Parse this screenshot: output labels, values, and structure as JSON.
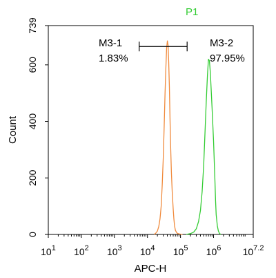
{
  "chart_data": {
    "type": "histogram",
    "title": "P1",
    "title_color": "#33cc33",
    "xlabel": "APC-H",
    "ylabel": "Count",
    "x_scale": "log10",
    "xlim": [
      10,
      15848931.92
    ],
    "x_ticks": [
      {
        "value": 10,
        "base": "10",
        "exp": "1"
      },
      {
        "value": 100,
        "base": "10",
        "exp": "2"
      },
      {
        "value": 1000,
        "base": "10",
        "exp": "3"
      },
      {
        "value": 10000,
        "base": "10",
        "exp": "4"
      },
      {
        "value": 100000,
        "base": "10",
        "exp": "5"
      },
      {
        "value": 1000000,
        "base": "10",
        "exp": "6"
      },
      {
        "value": 15848931.92,
        "base": "10",
        "exp": "7.2"
      }
    ],
    "ylim": [
      0,
      739
    ],
    "y_ticks": [
      0,
      200,
      400,
      600,
      739
    ],
    "series": [
      {
        "color": "#f08a3c",
        "x": [
          15850,
          18000,
          20000,
          22000,
          24000,
          26000,
          28000,
          30000,
          32000,
          34000,
          36000,
          38000,
          40000,
          42000,
          44000,
          46000,
          48000,
          50000,
          53000,
          56000,
          60000,
          63000,
          66000,
          70000,
          75000,
          80000,
          90000,
          100000,
          115000
        ],
        "y": [
          0,
          5,
          12,
          28,
          55,
          100,
          175,
          270,
          380,
          500,
          590,
          660,
          685,
          670,
          610,
          520,
          420,
          320,
          220,
          150,
          90,
          55,
          30,
          15,
          8,
          4,
          2,
          1,
          0
        ]
      },
      {
        "color": "#33cc33",
        "x": [
          150000,
          200000,
          250000,
          300000,
          350000,
          400000,
          450000,
          500000,
          550000,
          600000,
          650000,
          700000,
          750000,
          800000,
          850000,
          900000,
          950000,
          1000000,
          1050000,
          1100000,
          1150000,
          1200000,
          1300000,
          1400000,
          1500000,
          1650000
        ],
        "y": [
          0,
          3,
          8,
          20,
          45,
          85,
          150,
          240,
          360,
          470,
          560,
          620,
          615,
          570,
          510,
          450,
          390,
          330,
          260,
          190,
          120,
          70,
          30,
          12,
          4,
          0
        ]
      }
    ],
    "gates": [
      {
        "name": "M3-1",
        "percent": "1.83%",
        "x_start": 5623,
        "x_end": 158489
      },
      {
        "name": "M3-2",
        "percent": "97.95%"
      }
    ],
    "gate_level": 665
  }
}
